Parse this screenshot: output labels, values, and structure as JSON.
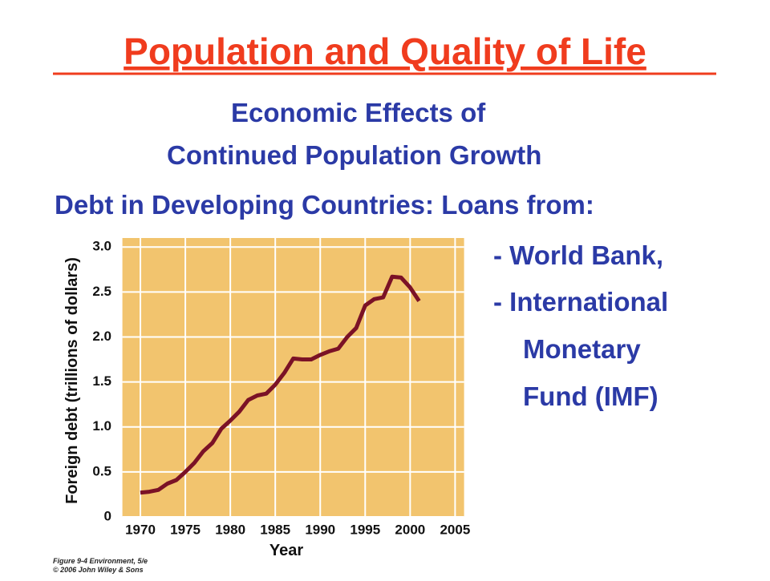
{
  "title": "Population and Quality of Life",
  "subtitle": [
    "Economic Effects of",
    "Continued Population Growth",
    "Debt in Developing Countries: Loans from:"
  ],
  "list": [
    "- World Bank,",
    "- International",
    "Monetary",
    "Fund (IMF)"
  ],
  "caption": [
    "Figure 9-4 Environment, 5/e",
    "© 2006 John Wiley & Sons"
  ],
  "chart_data": {
    "type": "line",
    "x_label": "Year",
    "y_label": "Foreign debt (trillions of dollars)",
    "x": [
      1970,
      1971,
      1972,
      1973,
      1974,
      1975,
      1976,
      1977,
      1978,
      1979,
      1980,
      1981,
      1982,
      1983,
      1984,
      1985,
      1986,
      1987,
      1988,
      1989,
      1990,
      1991,
      1992,
      1993,
      1994,
      1995,
      1996,
      1997,
      1998,
      1999,
      2000,
      2001
    ],
    "values": [
      0.27,
      0.28,
      0.3,
      0.37,
      0.41,
      0.5,
      0.6,
      0.73,
      0.82,
      0.98,
      1.07,
      1.17,
      1.3,
      1.35,
      1.37,
      1.47,
      1.6,
      1.76,
      1.75,
      1.75,
      1.8,
      1.84,
      1.87,
      2.0,
      2.1,
      2.35,
      2.42,
      2.44,
      2.67,
      2.66,
      2.55,
      2.4
    ],
    "color": "#7b1226",
    "background": "#f2c46e",
    "grid": true,
    "xlim": [
      1968,
      2006
    ],
    "xticks": [
      1970,
      1975,
      1980,
      1985,
      1990,
      1995,
      2000,
      2005
    ],
    "ylim": [
      0,
      3.1
    ],
    "yticks": [
      0,
      0.5,
      {
        "value": 1,
        "label": "1.0"
      },
      1.5,
      {
        "value": 2,
        "label": "2.0"
      },
      2.5,
      {
        "value": 3,
        "label": "3.0"
      }
    ]
  }
}
